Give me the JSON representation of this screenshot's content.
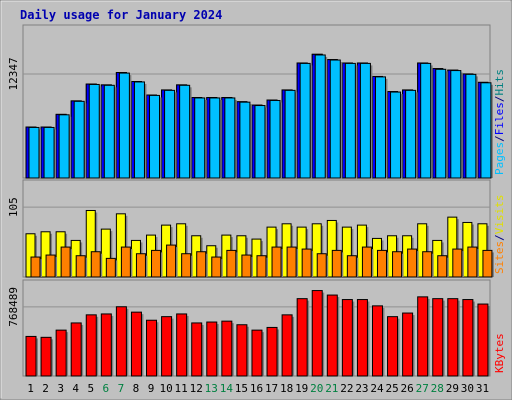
{
  "chart_data": {
    "type": "bar",
    "title": "Daily usage for January 2024",
    "categories": [
      "1",
      "2",
      "3",
      "4",
      "5",
      "6",
      "7",
      "8",
      "9",
      "10",
      "11",
      "12",
      "13",
      "14",
      "15",
      "16",
      "17",
      "18",
      "19",
      "20",
      "21",
      "22",
      "23",
      "24",
      "25",
      "26",
      "27",
      "28",
      "29",
      "30",
      "31"
    ],
    "weekend_days": [
      "6",
      "7",
      "13",
      "14",
      "20",
      "21",
      "27",
      "28"
    ],
    "panels": [
      {
        "id": "hits-files-pages",
        "axis_label": "12347",
        "ymax": 12347,
        "side_labels": [
          {
            "text": "Pages",
            "color": "#00c0ff"
          },
          {
            "text": "/",
            "color": "#000080"
          },
          {
            "text": "Files",
            "color": "#0000ff"
          },
          {
            "text": "/",
            "color": "#000080"
          },
          {
            "text": "Hits",
            "color": "#008080"
          }
        ],
        "series": [
          {
            "name": "Hits",
            "color": "#008080",
            "values": [
              6050,
              6050,
              7550,
              9150,
              11150,
              11050,
              12520,
              11450,
              9850,
              10450,
              11050,
              9550,
              9550,
              9550,
              9050,
              8650,
              9250,
              10450,
              13650,
              14680,
              14050,
              13650,
              13650,
              12050,
              10250,
              10450,
              13650,
              12980,
              12800,
              12350,
              11350
            ]
          },
          {
            "name": "Files",
            "color": "#0000ff",
            "values": [
              6050,
              6050,
              7550,
              9150,
              11150,
              11050,
              12520,
              11450,
              9850,
              10450,
              11050,
              9550,
              9550,
              9550,
              9050,
              8650,
              9250,
              10450,
              13650,
              14680,
              14050,
              13650,
              13650,
              12050,
              10250,
              10450,
              13650,
              12980,
              12800,
              12350,
              11350
            ]
          },
          {
            "name": "Pages",
            "color": "#00c0ff",
            "values": [
              6000,
              6000,
              7500,
              9100,
              11100,
              11000,
              12450,
              11400,
              9800,
              10400,
              11000,
              9500,
              9500,
              9500,
              9000,
              8600,
              9200,
              10400,
              13600,
              14600,
              14000,
              13600,
              13600,
              12000,
              10200,
              10400,
              13600,
              12900,
              12750,
              12300,
              11300
            ]
          }
        ]
      },
      {
        "id": "visits-sites",
        "axis_label": "105",
        "ymax": 105,
        "side_labels": [
          {
            "text": "Sites",
            "color": "#ff8000"
          },
          {
            "text": "/",
            "color": "#000080"
          },
          {
            "text": "Visits",
            "color": "#e0e000"
          }
        ],
        "series": [
          {
            "name": "Visits",
            "color": "#ffff00",
            "values": [
              65,
              68,
              68,
              55,
              100,
              72,
              95,
              55,
              63,
              78,
              80,
              62,
              47,
              63,
              62,
              57,
              75,
              80,
              75,
              80,
              85,
              75,
              78,
              58,
              62,
              62,
              80,
              55,
              90,
              82,
              80
            ]
          },
          {
            "name": "Sites",
            "color": "#ff8000",
            "values": [
              30,
              33,
              45,
              32,
              38,
              28,
              45,
              35,
              40,
              48,
              35,
              38,
              30,
              40,
              33,
              32,
              45,
              45,
              42,
              35,
              40,
              32,
              45,
              40,
              38,
              42,
              38,
              32,
              42,
              45,
              40
            ]
          }
        ]
      },
      {
        "id": "kbytes",
        "axis_label": "768489",
        "ymax": 768489,
        "side_labels": [
          {
            "text": "KBytes",
            "color": "#ff0000"
          }
        ],
        "series": [
          {
            "name": "KBytes",
            "color": "#ff0000",
            "values": [
              440000,
              430000,
              510000,
              590000,
              680000,
              690000,
              770000,
              710000,
              620000,
              660000,
              690000,
              590000,
              600000,
              610000,
              570000,
              510000,
              540000,
              680000,
              860000,
              950000,
              900000,
              850000,
              850000,
              780000,
              660000,
              700000,
              880000,
              860000,
              860000,
              850000,
              800000
            ]
          }
        ]
      }
    ]
  }
}
